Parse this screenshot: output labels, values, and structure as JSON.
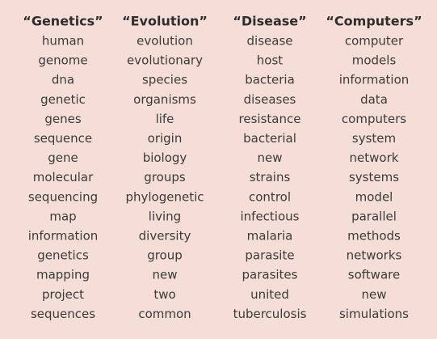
{
  "table": {
    "columns": [
      {
        "title": "“Genetics”",
        "words": [
          "human",
          "genome",
          "dna",
          "genetic",
          "genes",
          "sequence",
          "gene",
          "molecular",
          "sequencing",
          "map",
          "information",
          "genetics",
          "mapping",
          "project",
          "sequences"
        ]
      },
      {
        "title": "“Evolution”",
        "words": [
          "evolution",
          "evolutionary",
          "species",
          "organisms",
          "life",
          "origin",
          "biology",
          "groups",
          "phylogenetic",
          "living",
          "diversity",
          "group",
          "new",
          "two",
          "common"
        ]
      },
      {
        "title": "“Disease”",
        "words": [
          "disease",
          "host",
          "bacteria",
          "diseases",
          "resistance",
          "bacterial",
          "new",
          "strains",
          "control",
          "infectious",
          "malaria",
          "parasite",
          "parasites",
          "united",
          "tuberculosis"
        ]
      },
      {
        "title": "“Computers”",
        "words": [
          "computer",
          "models",
          "information",
          "data",
          "computers",
          "system",
          "network",
          "systems",
          "model",
          "parallel",
          "methods",
          "networks",
          "software",
          "new",
          "simulations"
        ]
      }
    ]
  }
}
